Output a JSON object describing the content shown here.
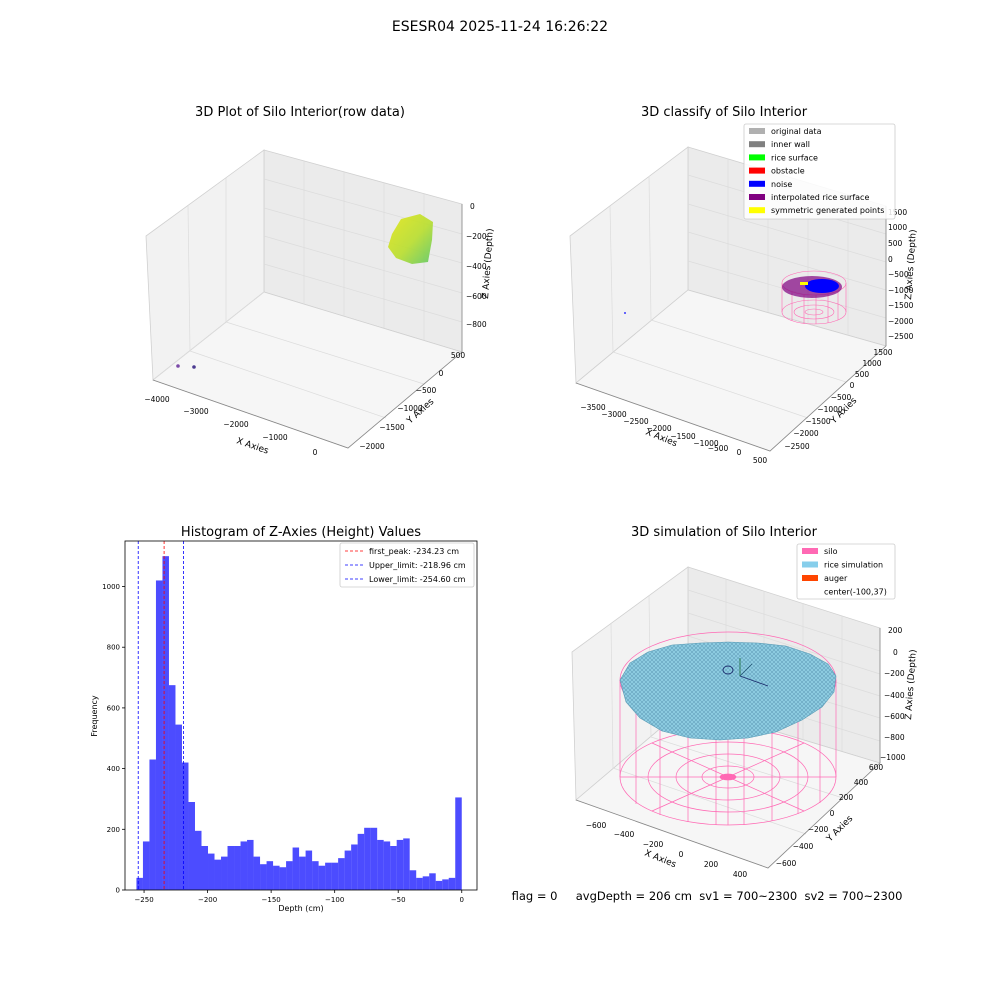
{
  "suptitle": "ESESR04 2025-11-24 16:26:22",
  "panels": {
    "raw": {
      "title": "3D Plot of Silo Interior(row data)",
      "xlabel": "X Axies",
      "ylabel": "Y Axies",
      "zlabel": "Z Axies (Depth)",
      "xticks": [
        "−4000",
        "−3000",
        "−2000",
        "−1000",
        "0"
      ],
      "yticks": [
        "−2000",
        "−1500",
        "−1000",
        "−500",
        "0",
        "500"
      ],
      "zticks": [
        "0",
        "−200",
        "−400",
        "−600",
        "−800"
      ]
    },
    "classify": {
      "title": "3D classify of Silo Interior",
      "xlabel": "X Axies",
      "ylabel": "Y Axies",
      "zlabel": "Z Axies (Depth)",
      "xticks": [
        "−3500",
        "−3000",
        "−2500",
        "−2000",
        "−1500",
        "−1000",
        "−500",
        "0",
        "500"
      ],
      "yticks": [
        "−2500",
        "−2000",
        "−1500",
        "−1000",
        "−500",
        "0",
        "500",
        "1000",
        "1500"
      ],
      "zticks": [
        "1000",
        "500",
        "0",
        "−500",
        "−1000",
        "−1500",
        "−2000",
        "−2500"
      ],
      "ztop": "1500",
      "legend": [
        {
          "label": "original data",
          "color": "#b0b0b0"
        },
        {
          "label": "inner wall",
          "color": "#808080"
        },
        {
          "label": "rice surface",
          "color": "#00ff00"
        },
        {
          "label": "obstacle",
          "color": "#ff0000"
        },
        {
          "label": "noise",
          "color": "#0000ff"
        },
        {
          "label": "interpolated rice surface",
          "color": "#800080"
        },
        {
          "label": "symmetric generated points",
          "color": "#ffff00"
        }
      ]
    },
    "simulation": {
      "title": "3D simulation of Silo Interior",
      "xlabel": "X Axies",
      "ylabel": "Y Axies",
      "zlabel": "Z Axies (Depth)",
      "xticks": [
        "−600",
        "−400",
        "−200",
        "0",
        "200",
        "400"
      ],
      "yticks": [
        "−600",
        "−400",
        "−200",
        "0",
        "200",
        "400",
        "600"
      ],
      "zticks": [
        "200",
        "0",
        "−200",
        "−400",
        "−600",
        "−800",
        "−1000"
      ],
      "legend": [
        {
          "label": "silo",
          "color": "#ff69b4"
        },
        {
          "label": "rice simulation",
          "color": "#87ceeb"
        },
        {
          "label": "auger",
          "color": "#ff4500"
        },
        {
          "label": "center(-100,37)",
          "color": ""
        }
      ],
      "status": "flag = 0     avgDepth = 206 cm  sv1 = 700~2300  sv2 = 700~2300"
    }
  },
  "chart_data": {
    "type": "bar",
    "title": "Histogram of Z-Axies (Height) Values",
    "xlabel": "Depth (cm)",
    "ylabel": "Frequency",
    "xlim": [
      -265,
      12
    ],
    "ylim": [
      0,
      1150
    ],
    "xticks": [
      {
        "v": -250,
        "label": "−250"
      },
      {
        "v": -200,
        "label": "−200"
      },
      {
        "v": -150,
        "label": "−150"
      },
      {
        "v": -100,
        "label": "−100"
      },
      {
        "v": -50,
        "label": "−50"
      },
      {
        "v": 0,
        "label": "0"
      }
    ],
    "yticks": [
      0,
      200,
      400,
      600,
      800,
      1000
    ],
    "bin_start": -256.0,
    "bin_width": 5.12,
    "color": "#0000ff",
    "values": [
      40,
      160,
      430,
      1020,
      1100,
      675,
      545,
      420,
      290,
      195,
      145,
      120,
      100,
      110,
      145,
      145,
      160,
      165,
      110,
      85,
      95,
      80,
      75,
      95,
      140,
      110,
      130,
      95,
      80,
      90,
      90,
      105,
      130,
      150,
      185,
      205,
      205,
      165,
      160,
      145,
      165,
      170,
      65,
      40,
      45,
      55,
      30,
      35,
      40,
      305
    ],
    "vlines": [
      {
        "x": -234.23,
        "color": "#ff0000",
        "label": "first_peak: -234.23 cm"
      },
      {
        "x": -218.96,
        "color": "#0000ff",
        "label": "Upper_limit: -218.96 cm"
      },
      {
        "x": -254.6,
        "color": "#0000ff",
        "label": "Lower_limit: -254.60 cm"
      }
    ]
  }
}
